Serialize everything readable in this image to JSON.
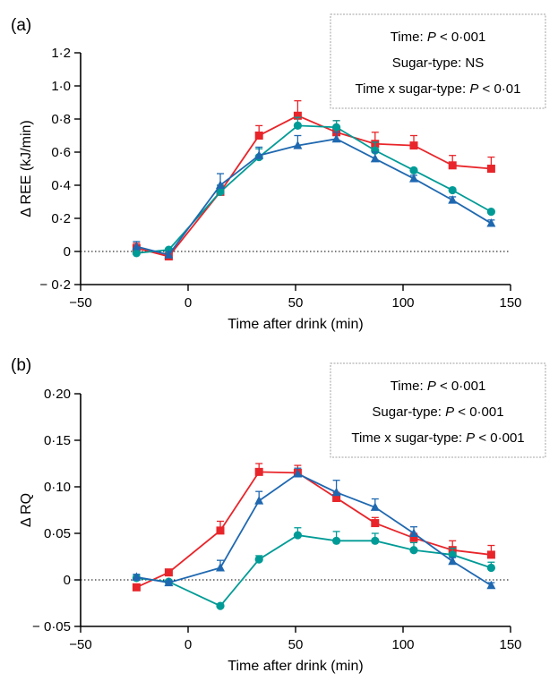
{
  "chart_data": [
    {
      "type": "line",
      "panel_label": "(a)",
      "ylabel": "Δ REE (kJ/min)",
      "xlabel": "Time after drink (min)",
      "xlim": [
        -50,
        150
      ],
      "ylim": [
        -0.2,
        1.2
      ],
      "x_ticks": [
        -50,
        0,
        50,
        100,
        150
      ],
      "x_tick_labels": [
        "−50",
        "0",
        "50",
        "100",
        "150"
      ],
      "y_ticks": [
        -0.2,
        0,
        0.2,
        0.4,
        0.6,
        0.8,
        1.0,
        1.2
      ],
      "y_tick_labels": [
        "− 0·2",
        "0",
        "0·2",
        "0·4",
        "0·6",
        "0·8",
        "1·0",
        "1·2"
      ],
      "zero_line": true,
      "stats": [
        {
          "label": "Time: ",
          "italic": "P",
          "value": " < 0·001"
        },
        {
          "label": "Sugar-type: NS",
          "italic": "",
          "value": ""
        },
        {
          "label": "Time x sugar-type: ",
          "italic": "P",
          "value": " < 0·01"
        }
      ],
      "series": [
        {
          "color": "#e8252a",
          "marker": "square",
          "x": [
            -24,
            -9,
            15,
            33,
            51,
            69,
            87,
            105,
            123,
            141
          ],
          "y": [
            0.02,
            -0.03,
            0.36,
            0.7,
            0.82,
            0.72,
            0.65,
            0.64,
            0.52,
            0.5
          ],
          "err": [
            0.03,
            0.02,
            0.04,
            0.06,
            0.09,
            0.07,
            0.07,
            0.06,
            0.06,
            0.07
          ]
        },
        {
          "color": "#009b96",
          "marker": "circle",
          "x": [
            -24,
            -9,
            15,
            33,
            51,
            69,
            87,
            105,
            123,
            141
          ],
          "y": [
            -0.01,
            0.01,
            0.36,
            0.57,
            0.76,
            0.75,
            0.61,
            0.49,
            0.37,
            0.24
          ],
          "err": [
            0.03,
            0.01,
            0.04,
            0.05,
            0.05,
            0.04,
            0.05,
            0.0,
            0.0,
            0.0
          ]
        },
        {
          "color": "#1f68b0",
          "marker": "triangle",
          "x": [
            -24,
            -9,
            15,
            33,
            51,
            69,
            87,
            105,
            123,
            141
          ],
          "y": [
            0.03,
            -0.02,
            0.4,
            0.58,
            0.64,
            0.68,
            0.56,
            0.44,
            0.31,
            0.17
          ],
          "err": [
            0.03,
            0.02,
            0.07,
            0.05,
            0.06,
            0.04,
            0.04,
            0.02,
            0.02,
            0.02
          ]
        }
      ]
    },
    {
      "type": "line",
      "panel_label": "(b)",
      "ylabel": "Δ RQ",
      "xlabel": "Time after drink (min)",
      "xlim": [
        -50,
        150
      ],
      "ylim": [
        -0.05,
        0.2
      ],
      "x_ticks": [
        -50,
        0,
        50,
        100,
        150
      ],
      "x_tick_labels": [
        "−50",
        "0",
        "50",
        "100",
        "150"
      ],
      "y_ticks": [
        -0.05,
        0,
        0.05,
        0.1,
        0.15,
        0.2
      ],
      "y_tick_labels": [
        "− 0·05",
        "0",
        "0·05",
        "0·10",
        "0·15",
        "0·20"
      ],
      "zero_line": true,
      "stats": [
        {
          "label": "Time: ",
          "italic": "P",
          "value": " < 0·001"
        },
        {
          "label": "Sugar-type: ",
          "italic": "P",
          "value": " < 0·001"
        },
        {
          "label": "Time x sugar-type: ",
          "italic": "P",
          "value": " < 0·001"
        }
      ],
      "series": [
        {
          "color": "#e8252a",
          "marker": "square",
          "x": [
            -24,
            -9,
            15,
            33,
            51,
            69,
            87,
            105,
            123,
            141
          ],
          "y": [
            -0.008,
            0.008,
            0.053,
            0.116,
            0.115,
            0.088,
            0.061,
            0.045,
            0.032,
            0.027
          ],
          "err": [
            0.002,
            0.002,
            0.01,
            0.009,
            0.008,
            0.006,
            0.006,
            0.005,
            0.01,
            0.01
          ]
        },
        {
          "color": "#009b96",
          "marker": "circle",
          "x": [
            -24,
            -9,
            15,
            33,
            51,
            69,
            87,
            105,
            123,
            141
          ],
          "y": [
            0.002,
            -0.002,
            -0.028,
            0.022,
            0.048,
            0.042,
            0.042,
            0.032,
            0.027,
            0.013
          ],
          "err": [
            0.003,
            0.002,
            0.002,
            0.004,
            0.008,
            0.01,
            0.008,
            0.008,
            0.007,
            0.006
          ]
        },
        {
          "color": "#1f68b0",
          "marker": "triangle",
          "x": [
            -24,
            -9,
            15,
            33,
            51,
            69,
            87,
            105,
            123,
            141
          ],
          "y": [
            0.003,
            -0.003,
            0.013,
            0.085,
            0.114,
            0.094,
            0.078,
            0.05,
            0.02,
            -0.006
          ],
          "err": [
            0.003,
            0.002,
            0.008,
            0.01,
            0.006,
            0.013,
            0.009,
            0.007,
            0.004,
            0.003
          ]
        }
      ]
    }
  ]
}
